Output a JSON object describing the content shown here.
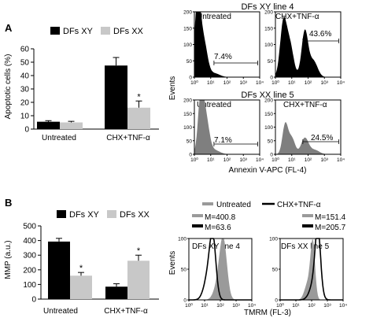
{
  "panels": {
    "A": {
      "letter": "A"
    },
    "B": {
      "letter": "B"
    }
  },
  "colors": {
    "xy": "#000000",
    "xx": "#c8c8c8",
    "hist_xy": "#000000",
    "hist_xx": "#7f7f7f",
    "tmrm_untreated": "#9a9a9a",
    "tmrm_treated": "#000000"
  },
  "flow_common": {
    "y_ticks": [
      "0",
      "50",
      "100",
      "150",
      "200"
    ],
    "y_ticks_short": [
      "0",
      "50",
      "100"
    ],
    "x_ticks": [
      "10⁰",
      "10¹",
      "10²",
      "10³",
      "10⁴"
    ]
  },
  "annexin": {
    "xy_title": "DFs XY line 4",
    "xx_title": "DFs XX line 5",
    "y_axis_label": "Events",
    "x_axis_label": "Annexin V-APC (FL-4)",
    "plots": [
      {
        "label": "Untreated",
        "percent": "7.4%"
      },
      {
        "label": "CHX+TNF-α",
        "percent": "43.6%"
      },
      {
        "label": "Untreated",
        "percent": "7.1%"
      },
      {
        "label": "CHX+TNF-α",
        "percent": "24.5%"
      }
    ]
  },
  "tmrm": {
    "legend_untreated": "Untreated",
    "legend_treated": "CHX+TNF-α",
    "y_axis_label": "Events",
    "x_axis_label": "TMRM (FL-3)",
    "plots": [
      {
        "title": "DFs XY line 4",
        "m_untreated": "M=400.8",
        "m_treated": "M=63.6"
      },
      {
        "title": "DFs XX line 5",
        "m_untreated": "M=151.4",
        "m_treated": "M=205.7"
      }
    ]
  },
  "chart_data": [
    {
      "type": "bar",
      "ylabel": "Apoptotic cells (%)",
      "ylim": [
        0,
        60
      ],
      "yticks": [
        0,
        10,
        20,
        30,
        40,
        50,
        60
      ],
      "categories": [
        "Untreated",
        "CHX+TNF-α"
      ],
      "series": [
        {
          "name": "DFs XY",
          "values": [
            5.5,
            47.5
          ],
          "errors": [
            0.8,
            6
          ]
        },
        {
          "name": "DFs XX",
          "values": [
            5,
            16
          ],
          "errors": [
            0.8,
            5
          ]
        }
      ],
      "significance": [
        "",
        "*"
      ],
      "legend": "top"
    },
    {
      "type": "bar",
      "ylabel": "MMP (a.u.)",
      "ylim": [
        0,
        500
      ],
      "yticks": [
        0,
        100,
        200,
        300,
        400,
        500
      ],
      "categories": [
        "Untreated",
        "CHX+TNF-α"
      ],
      "series": [
        {
          "name": "DFs XY",
          "values": [
            393,
            85
          ],
          "errors": [
            22,
            20
          ]
        },
        {
          "name": "DFs XX",
          "values": [
            160,
            262
          ],
          "errors": [
            22,
            38
          ]
        }
      ],
      "significance": [
        "*",
        "*"
      ],
      "legend": "top"
    }
  ]
}
